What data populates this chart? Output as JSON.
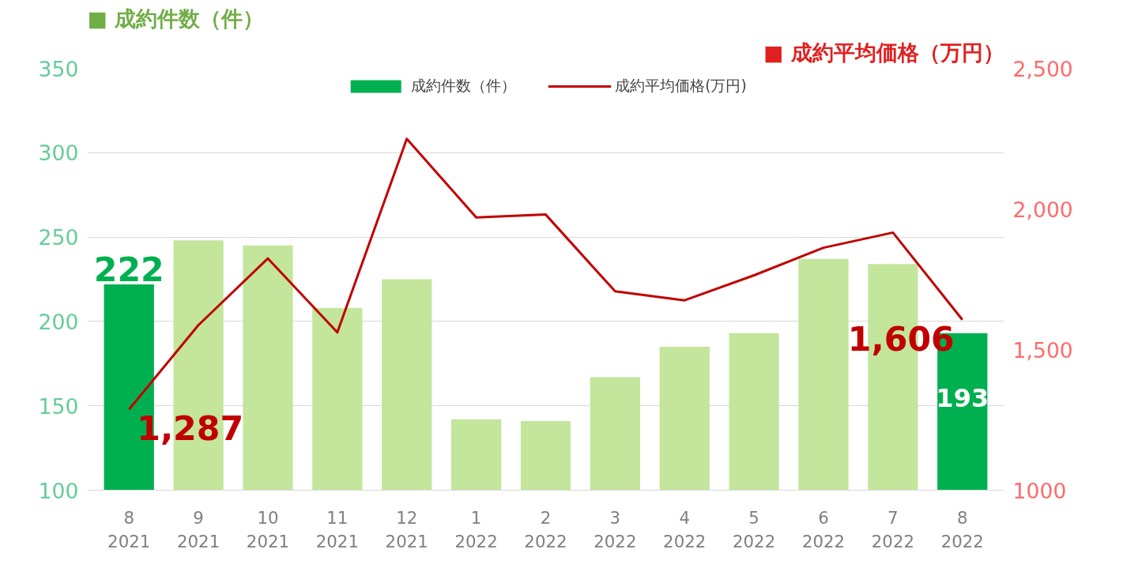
{
  "chart_data": {
    "type": "bar",
    "categories": [
      "8\n2021",
      "9\n2021",
      "10\n2021",
      "11\n2021",
      "12\n2021",
      "1\n2022",
      "2\n2022",
      "3\n2022",
      "4\n2022",
      "5\n2022",
      "6\n2022",
      "7\n2022",
      "8\n2022"
    ],
    "ylabel": "■ 成約件数（件）",
    "y2label": "■ 成約平均価格（万円）",
    "ylim": [
      100,
      350
    ],
    "yticks": [
      100,
      150,
      200,
      250,
      300,
      350
    ],
    "y2lim": [
      1000,
      2500
    ],
    "y2ticks": [
      1000,
      {
        "value": 1500,
        "label": "1,500"
      },
      {
        "value": 2000,
        "label": "2,000"
      },
      {
        "value": 2500,
        "label": "2,500"
      }
    ],
    "grid": "y",
    "legend": "top",
    "series": [
      {
        "name": "成約件数（件）",
        "color": "#c3e59c",
        "colors": [
          "#00b050",
          "#c3e59c",
          "#c3e59c",
          "#c3e59c",
          "#c3e59c",
          "#c3e59c",
          "#c3e59c",
          "#c3e59c",
          "#c3e59c",
          "#c3e59c",
          "#c3e59c",
          "#c3e59c",
          "#00b050"
        ],
        "values": [
          222,
          248,
          245,
          208,
          225,
          142,
          141,
          167,
          185,
          193,
          237,
          234,
          193
        ],
        "value_labels": [
          "222",
          null,
          null,
          null,
          null,
          null,
          null,
          null,
          null,
          null,
          null,
          null,
          "193"
        ]
      },
      {
        "name": "成約平均価格(万円)",
        "type": "line",
        "axis": "y2",
        "color": "#c00000",
        "values": [
          1287,
          1587,
          1824,
          1561,
          2249,
          1970,
          1980,
          1707,
          1675,
          1764,
          1862,
          1916,
          1606
        ],
        "value_labels": [
          "1,287",
          null,
          null,
          null,
          null,
          null,
          null,
          null,
          null,
          null,
          null,
          null,
          "1,606"
        ]
      }
    ]
  }
}
